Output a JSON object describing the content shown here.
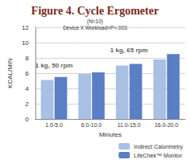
{
  "chart_data": {
    "type": "bar",
    "title": "Figure 4. Cycle Ergometer",
    "subtitle": [
      "(N=10)",
      "Device X Workload=P<.003"
    ],
    "x_label": "Minutes",
    "y_label": "KCAL/MIN",
    "categories": [
      "1.0-5.0",
      "6.0-10.0",
      "11.0-15.0",
      "16.0-20.0"
    ],
    "series": [
      {
        "name": "Indirect Calorimetry",
        "color": "#a9bfe3",
        "values": [
          5.1,
          5.9,
          7.0,
          7.8
        ]
      },
      {
        "name": "LifeChek™ Monitor",
        "color": "#5b7fc4",
        "values": [
          5.5,
          6.1,
          7.2,
          8.5
        ]
      }
    ],
    "annotations": [
      {
        "text": "1 kg, 50 rpm",
        "x": "1.0-5.0",
        "y": 7
      },
      {
        "text": "1 kg, 65 rpm",
        "x": "11.0-15.0",
        "y": 9
      }
    ],
    "ylim": [
      0,
      12
    ],
    "yticks": [
      0,
      2,
      4,
      6,
      8,
      10,
      12
    ],
    "grid": true,
    "legend": "bottom-right"
  }
}
